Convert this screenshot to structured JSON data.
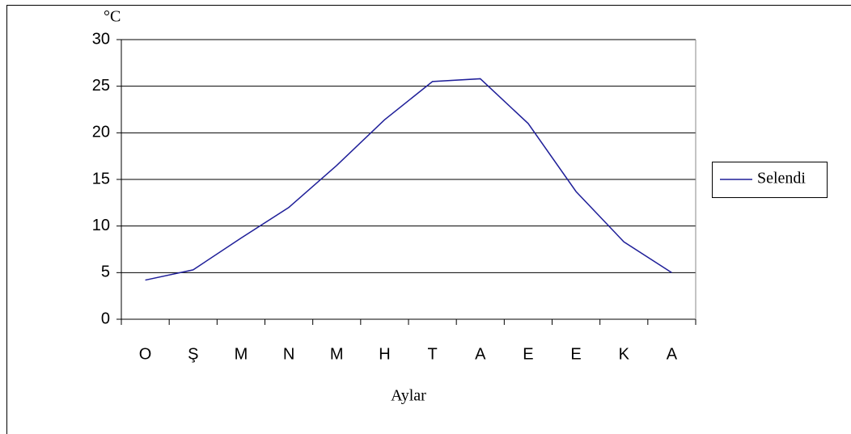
{
  "chart_data": {
    "type": "line",
    "ylabel": "°C",
    "xlabel": "Aylar",
    "categories": [
      "O",
      "Ş",
      "M",
      "N",
      "M",
      "H",
      "T",
      "A",
      "E",
      "E",
      "K",
      "A"
    ],
    "series": [
      {
        "name": "Selendi",
        "color": "#1f1f99",
        "values": [
          4.2,
          5.3,
          8.7,
          12.0,
          16.5,
          21.4,
          25.5,
          25.8,
          21.0,
          13.7,
          8.3,
          5.0
        ]
      }
    ],
    "ylim": [
      0,
      30
    ],
    "yticks": [
      0,
      5,
      10,
      15,
      20,
      25,
      30
    ],
    "grid": true,
    "legend": "right"
  }
}
